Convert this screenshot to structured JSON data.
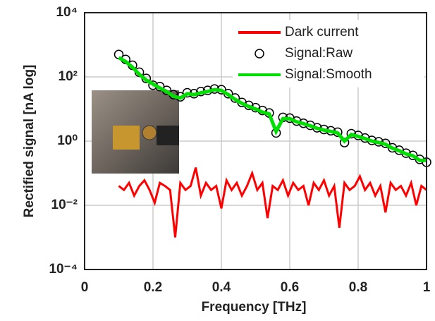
{
  "chart_data": {
    "type": "line",
    "xlabel": "Frequency [THz]",
    "ylabel": "Rectified signal [nA log]",
    "xlim": [
      0,
      1
    ],
    "xticks": [
      0,
      0.2,
      0.4,
      0.6,
      0.8,
      1
    ],
    "ylim": [
      0.0001,
      10000
    ],
    "yticks": [
      {
        "value": 0.0001,
        "label": "10⁻⁴"
      },
      {
        "value": 0.01,
        "label": "10⁻²"
      },
      {
        "value": 1,
        "label": "10⁰"
      },
      {
        "value": 100,
        "label": "10²"
      },
      {
        "value": 10000,
        "label": "10⁴"
      }
    ],
    "log_y": true,
    "grid": true,
    "legend": "upper right",
    "series": [
      {
        "name": "Dark current",
        "color": "#ff0000",
        "style": "line",
        "x": [
          0.1,
          0.115,
          0.13,
          0.145,
          0.16,
          0.175,
          0.19,
          0.205,
          0.22,
          0.235,
          0.25,
          0.265,
          0.28,
          0.295,
          0.31,
          0.325,
          0.34,
          0.355,
          0.37,
          0.385,
          0.4,
          0.415,
          0.43,
          0.445,
          0.46,
          0.475,
          0.49,
          0.505,
          0.52,
          0.535,
          0.55,
          0.565,
          0.58,
          0.595,
          0.61,
          0.625,
          0.64,
          0.655,
          0.67,
          0.685,
          0.7,
          0.715,
          0.73,
          0.745,
          0.76,
          0.775,
          0.79,
          0.805,
          0.82,
          0.835,
          0.85,
          0.865,
          0.88,
          0.895,
          0.91,
          0.925,
          0.94,
          0.955,
          0.97,
          0.985,
          1.0
        ],
        "values": [
          0.04,
          0.03,
          0.05,
          0.02,
          0.04,
          0.06,
          0.03,
          0.012,
          0.05,
          0.04,
          0.03,
          0.001,
          0.05,
          0.03,
          0.04,
          0.15,
          0.02,
          0.05,
          0.03,
          0.04,
          0.008,
          0.06,
          0.03,
          0.05,
          0.02,
          0.04,
          0.1,
          0.03,
          0.05,
          0.004,
          0.04,
          0.03,
          0.06,
          0.02,
          0.05,
          0.03,
          0.04,
          0.01,
          0.05,
          0.03,
          0.06,
          0.02,
          0.04,
          0.002,
          0.05,
          0.03,
          0.04,
          0.08,
          0.03,
          0.05,
          0.02,
          0.04,
          0.006,
          0.05,
          0.03,
          0.04,
          0.02,
          0.05,
          0.01,
          0.04,
          0.03
        ]
      },
      {
        "name": "Signal:Raw",
        "color": "#000000",
        "style": "circles",
        "x": [
          0.1,
          0.12,
          0.14,
          0.16,
          0.18,
          0.2,
          0.22,
          0.24,
          0.26,
          0.28,
          0.3,
          0.32,
          0.34,
          0.36,
          0.38,
          0.4,
          0.42,
          0.44,
          0.46,
          0.48,
          0.5,
          0.52,
          0.54,
          0.56,
          0.58,
          0.6,
          0.62,
          0.64,
          0.66,
          0.68,
          0.7,
          0.72,
          0.74,
          0.76,
          0.78,
          0.8,
          0.82,
          0.84,
          0.86,
          0.88,
          0.9,
          0.92,
          0.94,
          0.96,
          0.98,
          1.0
        ],
        "values": [
          500,
          350,
          230,
          140,
          90,
          55,
          50,
          38,
          28,
          24,
          32,
          30,
          35,
          38,
          42,
          40,
          30,
          22,
          16,
          13,
          11,
          9,
          7.5,
          1.8,
          5.5,
          5.2,
          4.2,
          3.6,
          3.1,
          2.6,
          2.3,
          2.1,
          1.9,
          0.9,
          1.7,
          1.5,
          1.25,
          1.05,
          0.95,
          0.85,
          0.62,
          0.52,
          0.42,
          0.36,
          0.27,
          0.22
        ]
      },
      {
        "name": "Signal:Smooth",
        "color": "#00e000",
        "style": "line",
        "x": [
          0.1,
          0.12,
          0.14,
          0.16,
          0.18,
          0.2,
          0.22,
          0.24,
          0.26,
          0.28,
          0.3,
          0.32,
          0.34,
          0.36,
          0.38,
          0.4,
          0.42,
          0.44,
          0.46,
          0.48,
          0.5,
          0.52,
          0.54,
          0.56,
          0.58,
          0.6,
          0.62,
          0.64,
          0.66,
          0.68,
          0.7,
          0.72,
          0.74,
          0.76,
          0.78,
          0.8,
          0.82,
          0.84,
          0.86,
          0.88,
          0.9,
          0.92,
          0.94,
          0.96,
          0.98,
          1.0
        ],
        "values": [
          400,
          300,
          200,
          120,
          80,
          60,
          45,
          35,
          25,
          22,
          30,
          28,
          32,
          35,
          40,
          38,
          28,
          20,
          15,
          12,
          10,
          8,
          7,
          2,
          5,
          5,
          4,
          3.5,
          3,
          2.5,
          2.2,
          2,
          1.8,
          1,
          1.6,
          1.4,
          1.2,
          1,
          0.9,
          0.8,
          0.6,
          0.5,
          0.4,
          0.35,
          0.25,
          0.25
        ]
      }
    ]
  }
}
